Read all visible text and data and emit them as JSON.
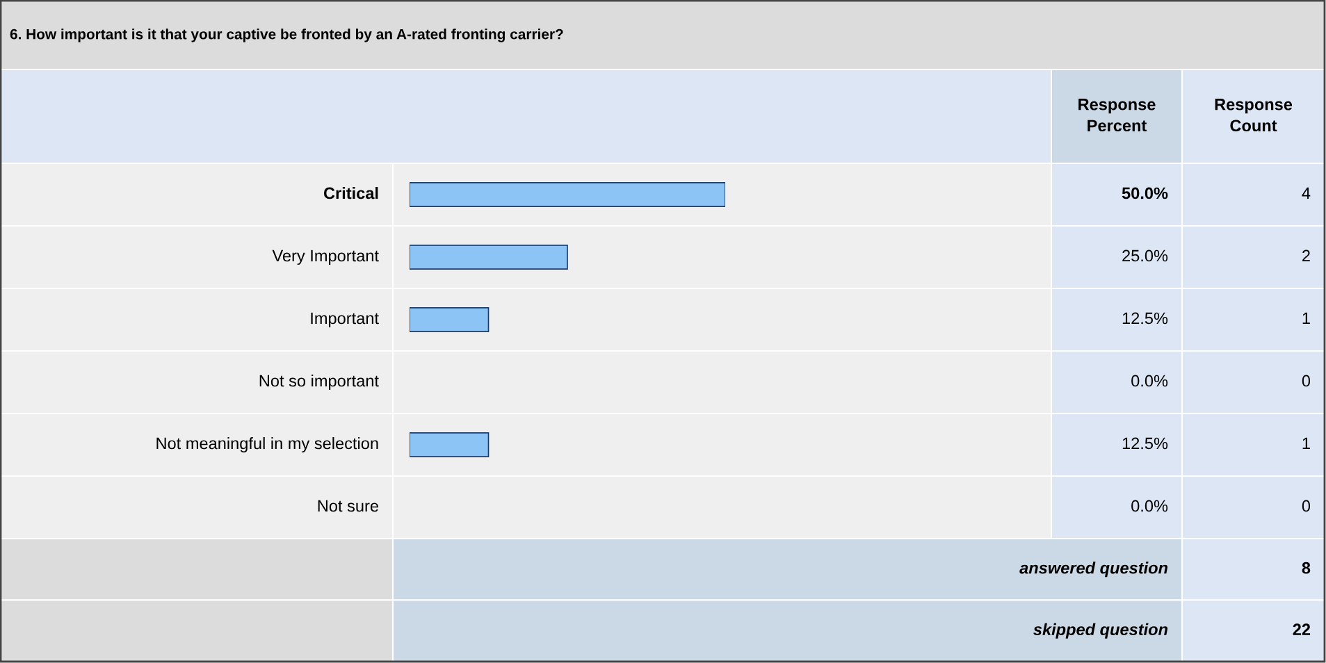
{
  "chart_data": {
    "type": "bar",
    "orientation": "horizontal",
    "title": "6. How important is it that your captive be fronted by an A-rated fronting carrier?",
    "categories": [
      "Critical",
      "Very Important",
      "Important",
      "Not so important",
      "Not meaningful in my selection",
      "Not sure"
    ],
    "series": [
      {
        "name": "Response Percent",
        "color": "#8cc4f5",
        "values": [
          50.0,
          25.0,
          12.5,
          0.0,
          12.5,
          0.0
        ],
        "value_labels": [
          "50.0%",
          "25.0%",
          "12.5%",
          "0.0%",
          "12.5%",
          "0.0%"
        ]
      }
    ],
    "annotations": [
      "Response Count",
      "4",
      "2",
      "1",
      "0",
      "1",
      "0",
      "answered question",
      "8",
      "skipped question",
      "22"
    ]
  }
}
